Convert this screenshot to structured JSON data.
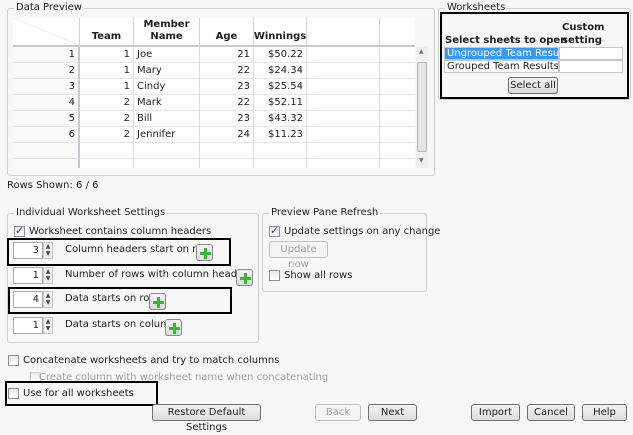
{
  "data_preview": {
    "title": "Data Preview",
    "columns": [
      "Team",
      "Member Name",
      "Age",
      "Winnings"
    ],
    "rows": [
      {
        "n": "1",
        "team": "1",
        "name": "Joe",
        "age": "21",
        "win": "$50.22"
      },
      {
        "n": "2",
        "team": "1",
        "name": "Mary",
        "age": "22",
        "win": "$24.34"
      },
      {
        "n": "3",
        "team": "1",
        "name": "Cindy",
        "age": "23",
        "win": "$25.54"
      },
      {
        "n": "4",
        "team": "2",
        "name": "Mark",
        "age": "22",
        "win": "$52.11"
      },
      {
        "n": "5",
        "team": "2",
        "name": "Bill",
        "age": "23",
        "win": "$43.32"
      },
      {
        "n": "6",
        "team": "2",
        "name": "Jennifer",
        "age": "24",
        "win": "$11.23"
      }
    ],
    "rows_shown": "Rows Shown: 6 / 6"
  },
  "worksheets": {
    "title": "Worksheets",
    "col_select": "Select sheets to open",
    "col_custom": "Custom setting",
    "items": [
      {
        "label": "Ungrouped Team Results",
        "selected": true
      },
      {
        "label": "Grouped Team Results",
        "selected": false
      }
    ],
    "select_all": "Select all"
  },
  "individual": {
    "title": "Individual Worksheet Settings",
    "contains_headers": {
      "label": "Worksheet contains column headers",
      "checked": true
    },
    "spinners": [
      {
        "value": "3",
        "label": "Column headers start on row"
      },
      {
        "value": "1",
        "label": "Number of rows with column headers"
      },
      {
        "value": "4",
        "label": "Data starts on row"
      },
      {
        "value": "1",
        "label": "Data starts on column"
      }
    ]
  },
  "preview_refresh": {
    "title": "Preview Pane Refresh",
    "update_any": {
      "label": "Update settings on any change",
      "checked": true
    },
    "update_now": "Update now",
    "show_all": {
      "label": "Show all rows",
      "checked": false
    }
  },
  "concatenate": {
    "label": "Concatenate worksheets and try to match columns",
    "checked": false
  },
  "create_column": {
    "label": "Create column with worksheet name when concatenating",
    "checked": false
  },
  "use_for_all": {
    "label": "Use for all worksheets",
    "checked": false
  },
  "buttons": {
    "restore": "Restore Default Settings",
    "back": "Back",
    "next": "Next",
    "import": "Import",
    "cancel": "Cancel",
    "help": "Help"
  },
  "colors": {
    "selection": "#3399ff",
    "accent_plus": "#36b836"
  }
}
